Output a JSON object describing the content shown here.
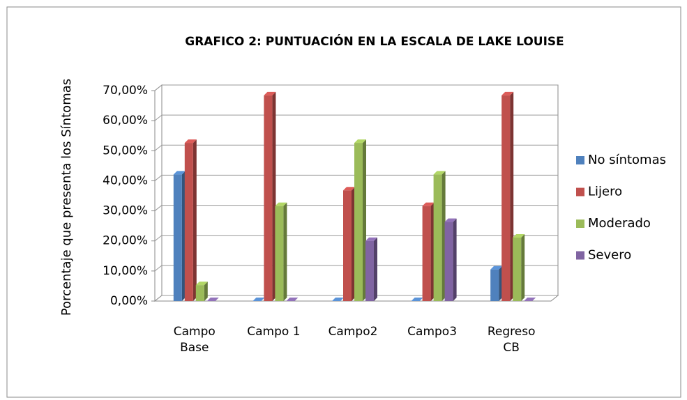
{
  "chart_data": {
    "type": "bar3d",
    "title": "GRAFICO 2: PUNTUACIÓN EN LA ESCALA DE LAKE LOUISE",
    "y_label": "Porcentaje que presenta los Síntomas",
    "categories": [
      "Campo Base",
      "Campo 1",
      "Campo2",
      "Campo3",
      "Regreso CB"
    ],
    "series": [
      {
        "name": "No síntomas",
        "color": "#4f81bd",
        "values": [
          42.1,
          0,
          0,
          0,
          10.5
        ]
      },
      {
        "name": "Lijero",
        "color": "#c0504d",
        "values": [
          52.6,
          68.4,
          36.8,
          31.6,
          68.4
        ]
      },
      {
        "name": "Moderado",
        "color": "#9bbb59",
        "values": [
          5.3,
          31.6,
          52.6,
          42.1,
          21.1
        ]
      },
      {
        "name": "Severo",
        "color": "#8064a2",
        "values": [
          0,
          0,
          20,
          26.3,
          0
        ]
      }
    ],
    "ylim": [
      0,
      70
    ],
    "yticks": [
      {
        "value": 0,
        "label": "0,00%"
      },
      {
        "value": 10,
        "label": "10,00%"
      },
      {
        "value": 20,
        "label": "20,00%"
      },
      {
        "value": 30,
        "label": "30,00%"
      },
      {
        "value": 40,
        "label": "40,00%"
      },
      {
        "value": 50,
        "label": "50,00%"
      },
      {
        "value": 60,
        "label": "60,00%"
      },
      {
        "value": 70,
        "label": "70,00%"
      }
    ],
    "grid": true,
    "legend": "right"
  }
}
